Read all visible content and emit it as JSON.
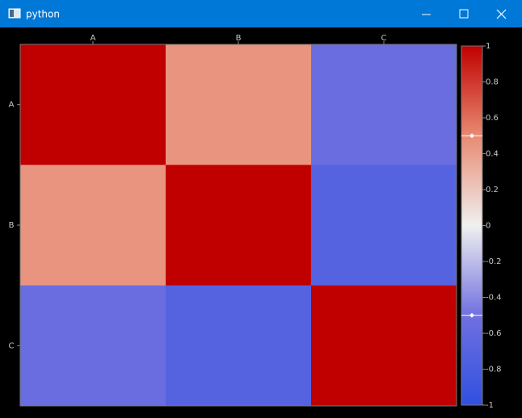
{
  "window": {
    "title": "python"
  },
  "chart_data": {
    "type": "heatmap",
    "categories": [
      "A",
      "B",
      "C"
    ],
    "values": [
      [
        1,
        0.45,
        -0.55
      ],
      [
        0.45,
        1,
        -0.7
      ],
      [
        -0.55,
        -0.7,
        1
      ]
    ],
    "colors": [
      "#3050e0",
      "#7070e0",
      "#f0f0f0",
      "#e88a72",
      "#c00000"
    ],
    "clim": [
      -1,
      1
    ],
    "cticks": [
      1,
      0.8,
      0.6,
      0.4,
      0.2,
      0,
      -0.2,
      -0.4,
      -0.6,
      -0.8,
      -1
    ],
    "handles": [
      0.5,
      -0.5
    ]
  }
}
